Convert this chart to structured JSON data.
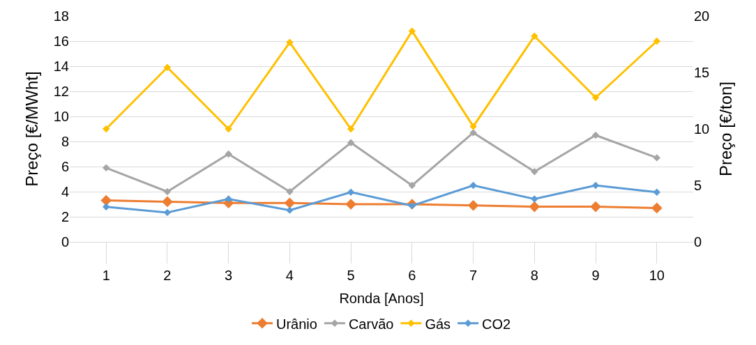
{
  "chart_data": {
    "type": "line",
    "xlabel": "Ronda [Anos]",
    "ylabel": "Preço [€/MWht]",
    "y2label": "Preço [€/ton]",
    "categories": [
      "1",
      "2",
      "3",
      "4",
      "5",
      "6",
      "7",
      "8",
      "9",
      "10"
    ],
    "series": [
      {
        "name": "Urânio",
        "color": "#ed7d31",
        "values": [
          3.3,
          3.2,
          3.1,
          3.1,
          3.0,
          3.0,
          2.9,
          2.8,
          2.8,
          2.7
        ]
      },
      {
        "name": "Carvão",
        "color": "#a5a5a5",
        "values": [
          5.9,
          4.0,
          7.0,
          4.0,
          7.9,
          4.5,
          8.7,
          5.6,
          8.5,
          6.7
        ]
      },
      {
        "name": "Gás",
        "color": "#ffc000",
        "values": [
          9.0,
          13.9,
          9.0,
          15.9,
          9.0,
          16.8,
          9.2,
          16.4,
          11.5,
          16.0
        ]
      },
      {
        "name": "CO2",
        "color": "#5b9bd5",
        "axis": "y2",
        "values": [
          3.1,
          2.6,
          3.8,
          2.8,
          4.4,
          3.2,
          5.0,
          3.8,
          5.0,
          4.4
        ]
      }
    ],
    "ylim": [
      0,
      18
    ],
    "yticks": [
      0,
      2,
      4,
      6,
      8,
      10,
      12,
      14,
      16,
      18
    ],
    "y2lim": [
      0,
      20
    ],
    "y2ticks": [
      0,
      5,
      10,
      15,
      20
    ],
    "grid": "y",
    "legend": "bottom",
    "marker": "diamond",
    "line_style": "solid"
  }
}
